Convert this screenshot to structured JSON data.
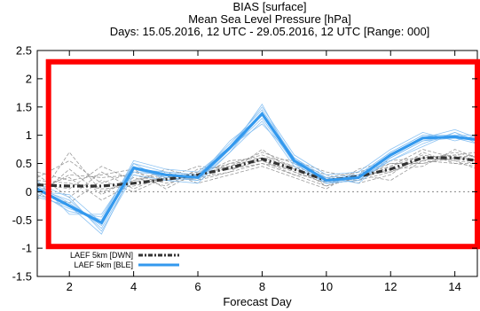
{
  "chart_data": {
    "type": "line",
    "title": [
      "BIAS [surface]",
      "Mean Sea Level Pressure [hPa]",
      "Days: 15.05.2016, 12 UTC - 29.05.2016, 12 UTC [Range: 000]"
    ],
    "xlabel": "Forecast Day",
    "ylabel": "",
    "xlim": [
      1,
      14.7
    ],
    "ylim": [
      -1.5,
      2.5
    ],
    "xticks": [
      2,
      4,
      6,
      8,
      10,
      12,
      14
    ],
    "yticks": [
      -1.5,
      -1,
      -0.5,
      0,
      0.5,
      1,
      1.5,
      2,
      2.5
    ],
    "x": [
      1,
      2,
      3,
      4,
      5,
      6,
      7,
      8,
      9,
      10,
      11,
      12,
      13,
      14,
      14.7
    ],
    "reference_line": 0,
    "series": [
      {
        "name": "LAEF 5km [DWN]",
        "color": "#333333",
        "style": "dash-dot",
        "values": [
          0.12,
          0.1,
          0.1,
          0.15,
          0.22,
          0.3,
          0.42,
          0.58,
          0.4,
          0.2,
          0.27,
          0.4,
          0.6,
          0.6,
          0.55
        ]
      },
      {
        "name": "LAEF 5km [BLE]",
        "color": "#3399ee",
        "style": "solid",
        "values": [
          0.05,
          -0.25,
          -0.55,
          0.42,
          0.3,
          0.25,
          0.78,
          1.38,
          0.55,
          0.2,
          0.25,
          0.65,
          0.95,
          0.97,
          0.92
        ]
      }
    ],
    "ensemble_members": {
      "gray": [
        [
          0.2,
          0.15,
          0.05,
          0.1,
          0.25,
          0.35,
          0.4,
          0.55,
          0.35,
          0.15,
          0.3,
          0.45,
          0.65,
          0.55,
          0.5
        ],
        [
          0.0,
          0.3,
          0.25,
          0.3,
          0.15,
          0.25,
          0.5,
          0.65,
          0.45,
          0.25,
          0.2,
          0.35,
          0.55,
          0.7,
          0.6
        ],
        [
          0.3,
          -0.1,
          0.35,
          0.05,
          0.3,
          0.2,
          0.35,
          0.5,
          0.3,
          0.1,
          0.35,
          0.5,
          0.5,
          0.6,
          0.55
        ],
        [
          -0.1,
          0.4,
          -0.05,
          0.25,
          0.1,
          0.4,
          0.45,
          0.7,
          0.5,
          0.3,
          0.15,
          0.3,
          0.7,
          0.5,
          0.45
        ],
        [
          0.15,
          0.05,
          0.45,
          0.2,
          0.35,
          0.15,
          0.3,
          0.45,
          0.25,
          0.05,
          0.4,
          0.55,
          0.6,
          0.65,
          0.7
        ],
        [
          0.25,
          0.55,
          0.15,
          0.35,
          0.2,
          0.3,
          0.55,
          0.6,
          0.55,
          0.35,
          0.25,
          0.4,
          0.45,
          0.75,
          0.6
        ],
        [
          -0.05,
          -0.2,
          0.2,
          0.0,
          0.25,
          0.45,
          0.4,
          0.5,
          0.4,
          0.2,
          0.3,
          0.2,
          0.55,
          0.5,
          0.5
        ],
        [
          0.1,
          0.25,
          -0.15,
          0.15,
          0.4,
          0.25,
          0.35,
          0.75,
          0.35,
          0.15,
          0.2,
          0.45,
          0.75,
          0.6,
          0.65
        ],
        [
          0.35,
          0.2,
          0.3,
          0.4,
          0.05,
          0.35,
          0.5,
          0.55,
          0.3,
          0.25,
          0.35,
          0.35,
          0.6,
          0.55,
          0.4
        ],
        [
          -0.15,
          0.7,
          0.0,
          0.2,
          0.3,
          0.2,
          0.45,
          0.6,
          0.45,
          0.1,
          0.25,
          0.5,
          0.5,
          0.65,
          0.55
        ]
      ],
      "blue": [
        [
          0.1,
          -0.2,
          -0.6,
          0.4,
          0.25,
          0.2,
          0.75,
          1.3,
          0.5,
          0.15,
          0.2,
          0.6,
          0.9,
          1.0,
          0.9
        ],
        [
          0.0,
          -0.35,
          -0.45,
          0.5,
          0.35,
          0.3,
          0.85,
          1.45,
          0.6,
          0.25,
          0.3,
          0.7,
          1.0,
          0.95,
          0.95
        ],
        [
          0.15,
          -0.1,
          -0.7,
          0.3,
          0.2,
          0.15,
          0.7,
          1.25,
          0.45,
          0.15,
          0.2,
          0.55,
          0.85,
          1.05,
          0.85
        ],
        [
          -0.05,
          -0.3,
          -0.5,
          0.55,
          0.4,
          0.35,
          0.8,
          1.5,
          0.65,
          0.3,
          0.35,
          0.75,
          1.05,
          0.9,
          1.0
        ],
        [
          0.05,
          -0.15,
          -0.65,
          0.35,
          0.3,
          0.25,
          0.9,
          1.35,
          0.55,
          0.2,
          0.25,
          0.65,
          0.95,
          1.1,
          0.95
        ],
        [
          0.2,
          -0.4,
          -0.4,
          0.45,
          0.25,
          0.2,
          0.7,
          1.4,
          0.5,
          0.25,
          0.15,
          0.6,
          0.9,
          0.95,
          0.85
        ],
        [
          -0.1,
          -0.25,
          -0.75,
          0.4,
          0.35,
          0.3,
          0.8,
          1.2,
          0.6,
          0.2,
          0.3,
          0.7,
          1.0,
          1.0,
          1.0
        ],
        [
          0.0,
          -0.05,
          -0.55,
          0.5,
          0.2,
          0.25,
          0.75,
          1.55,
          0.5,
          0.15,
          0.25,
          0.55,
          0.8,
          1.05,
          0.9
        ]
      ]
    },
    "legend": {
      "position": "bottom-left",
      "entries": [
        "LAEF 5km [DWN]",
        "LAEF 5km [BLE]"
      ]
    },
    "highlight_box": {
      "color": "#ff0000",
      "xlim": [
        1.35,
        14.7
      ],
      "ylim": [
        -0.97,
        2.3
      ]
    }
  }
}
